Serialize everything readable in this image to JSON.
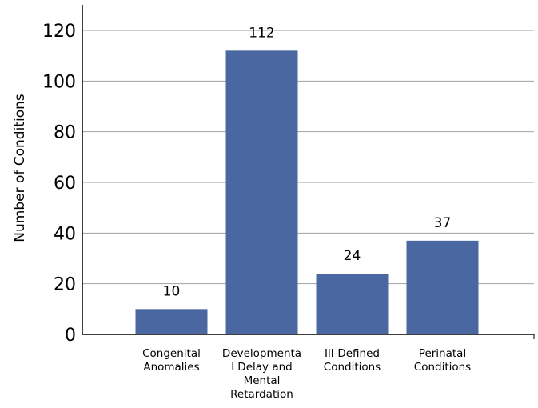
{
  "chart_data": {
    "type": "bar",
    "title": "",
    "xlabel": "",
    "ylabel": "Number of Conditions",
    "ylim": [
      0,
      130
    ],
    "yticks": [
      0,
      20,
      40,
      60,
      80,
      100,
      120
    ],
    "grid": true,
    "categories": [
      [
        "Congenital",
        "Anomalies"
      ],
      [
        "Developmenta",
        "l Delay and",
        "Mental",
        "Retardation"
      ],
      [
        "Ill-Defined",
        "Conditions"
      ],
      [
        "Perinatal",
        "Conditions"
      ]
    ],
    "values": [
      10,
      112,
      24,
      37
    ],
    "data_labels": [
      "10",
      "112",
      "24",
      "37"
    ],
    "colors": {
      "bar": "#4a67a1",
      "grid": "#a0a0a0",
      "axis": "#000000"
    }
  }
}
